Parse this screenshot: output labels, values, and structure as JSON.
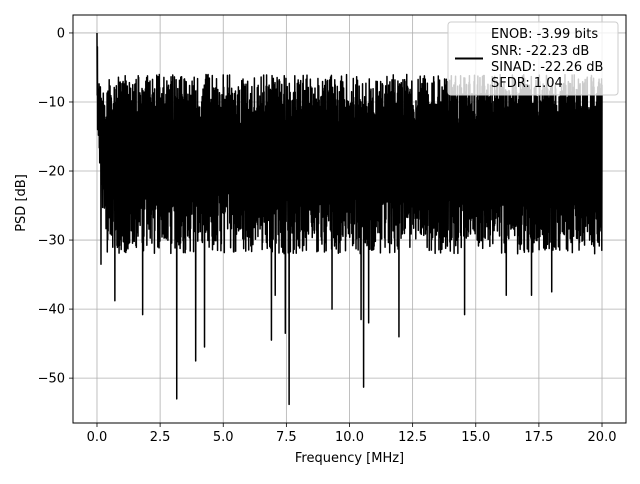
{
  "chart_data": {
    "type": "line",
    "title": "",
    "xlabel": "Frequency [MHz]",
    "ylabel": "PSD [dB]",
    "xlim": [
      -0.95,
      20.95
    ],
    "ylim": [
      -56.5,
      2.6
    ],
    "xticks": [
      0.0,
      2.5,
      5.0,
      7.5,
      10.0,
      12.5,
      15.0,
      17.5,
      20.0
    ],
    "xtick_labels": [
      "0.0",
      "2.5",
      "5.0",
      "7.5",
      "10.0",
      "12.5",
      "15.0",
      "17.5",
      "20.0"
    ],
    "yticks": [
      0,
      -10,
      -20,
      -30,
      -40,
      -50
    ],
    "ytick_labels": [
      "0",
      "−10",
      "−20",
      "−30",
      "−40",
      "−50"
    ],
    "grid": true,
    "legend_position": "upper-right",
    "legend": {
      "line_color": "#000000",
      "entries": [
        "ENOB: -3.99 bits",
        "SNR: -22.23 dB",
        "SINAD: -22.26 dB",
        "SFDR: 1.04"
      ]
    },
    "series": [
      {
        "color": "#000000",
        "x_start": 0.0,
        "x_end": 20.0,
        "noise_band_db": [
          -30,
          -8
        ],
        "start_peak": {
          "x": 0.0,
          "y": 0.0
        },
        "dips": [
          {
            "x": 0.15,
            "y": -33.5
          },
          {
            "x": 0.7,
            "y": -38.8
          },
          {
            "x": 1.8,
            "y": -40.8
          },
          {
            "x": 3.15,
            "y": -53.0
          },
          {
            "x": 3.9,
            "y": -47.5
          },
          {
            "x": 4.25,
            "y": -45.5
          },
          {
            "x": 6.9,
            "y": -44.5
          },
          {
            "x": 7.05,
            "y": -38.0
          },
          {
            "x": 7.45,
            "y": -43.5
          },
          {
            "x": 7.6,
            "y": -53.8
          },
          {
            "x": 9.3,
            "y": -40.0
          },
          {
            "x": 10.45,
            "y": -41.5
          },
          {
            "x": 10.55,
            "y": -51.3
          },
          {
            "x": 10.75,
            "y": -42.0
          },
          {
            "x": 11.95,
            "y": -44.0
          },
          {
            "x": 14.55,
            "y": -40.8
          },
          {
            "x": 16.2,
            "y": -38.0
          },
          {
            "x": 17.2,
            "y": -38.0
          },
          {
            "x": 18.0,
            "y": -37.5
          }
        ]
      }
    ]
  }
}
